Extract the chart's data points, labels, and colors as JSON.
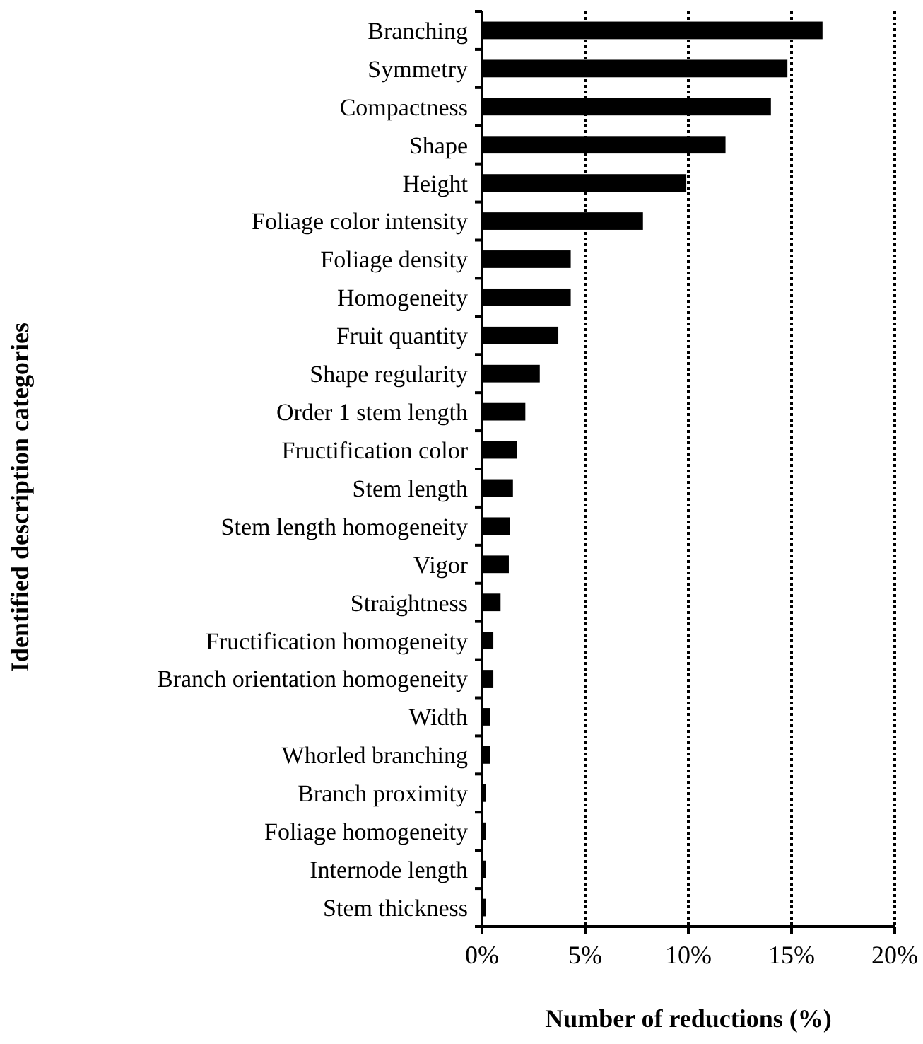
{
  "chart_data": {
    "type": "bar",
    "orientation": "horizontal",
    "xlabel": "Number of reductions (%)",
    "ylabel": "Identified description categories",
    "categories": [
      "Branching",
      "Symmetry",
      "Compactness",
      "Shape",
      "Height",
      "Foliage color intensity",
      "Foliage density",
      "Homogeneity",
      "Fruit quantity",
      "Shape regularity",
      "Order 1 stem length",
      "Fructification color",
      "Stem length",
      "Stem length homogeneity",
      "Vigor",
      "Straightness",
      "Fructification homogeneity",
      "Branch orientation homogeneity",
      "Width",
      "Whorled branching",
      "Branch proximity",
      "Foliage homogeneity",
      "Internode length",
      "Stem thickness"
    ],
    "values": [
      16.5,
      14.8,
      14.0,
      11.8,
      9.9,
      7.8,
      4.3,
      4.3,
      3.7,
      2.8,
      2.1,
      1.7,
      1.5,
      1.35,
      1.3,
      0.9,
      0.55,
      0.55,
      0.4,
      0.4,
      0.2,
      0.2,
      0.2,
      0.2
    ],
    "color": "#000000",
    "xlim": [
      0,
      20
    ],
    "xticks": [
      {
        "value": 0,
        "label": "0%"
      },
      {
        "value": 5,
        "label": "5%"
      },
      {
        "value": 10,
        "label": "10%"
      },
      {
        "value": 15,
        "label": "15%"
      },
      {
        "value": 20,
        "label": "20%"
      }
    ],
    "grid": "x"
  }
}
